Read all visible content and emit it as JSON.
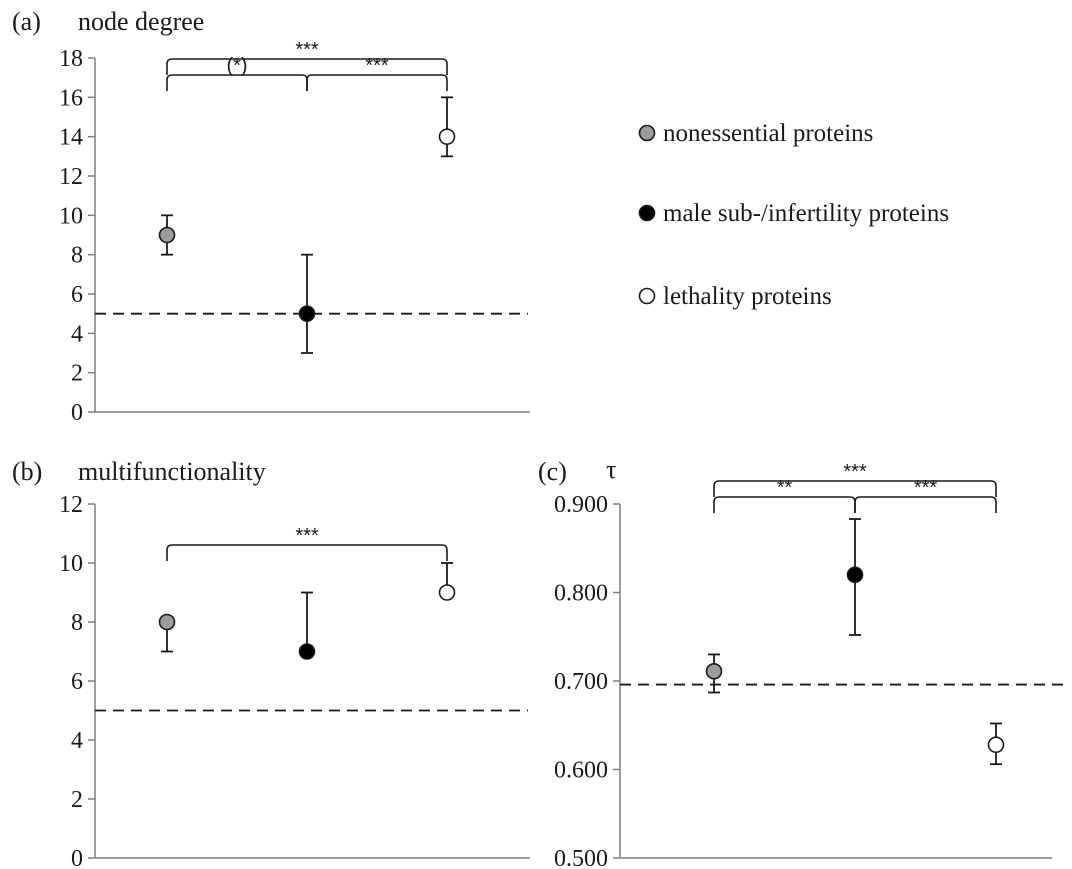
{
  "chart_data": [
    {
      "panel": "(a)",
      "title": "node degree",
      "type": "scatter",
      "ylim": [
        0,
        18
      ],
      "yticks": [
        "0",
        "2",
        "4",
        "6",
        "8",
        "10",
        "12",
        "14",
        "16",
        "18"
      ],
      "reference_line": 5,
      "points": [
        {
          "series": "nonessential proteins",
          "y": 9,
          "low": 8,
          "high": 10
        },
        {
          "series": "male sub-/infertility proteins",
          "y": 5,
          "low": 3,
          "high": 8
        },
        {
          "series": "lethality proteins",
          "y": 14,
          "low": 13,
          "high": 16
        }
      ],
      "significance": [
        {
          "from": 0,
          "to": 1,
          "label": "(*)",
          "level": 1
        },
        {
          "from": 1,
          "to": 2,
          "label": "***",
          "level": 1
        },
        {
          "from": 0,
          "to": 2,
          "label": "***",
          "level": 2
        }
      ]
    },
    {
      "panel": "(b)",
      "title": "multifunctionality",
      "type": "scatter",
      "ylim": [
        0,
        12
      ],
      "yticks": [
        "0",
        "2",
        "4",
        "6",
        "8",
        "10",
        "12"
      ],
      "reference_line": 5,
      "points": [
        {
          "series": "nonessential proteins",
          "y": 8,
          "low": 7,
          "high": 8
        },
        {
          "series": "male sub-/infertility proteins",
          "y": 7,
          "low": 7,
          "high": 9
        },
        {
          "series": "lethality proteins",
          "y": 9,
          "low": 9,
          "high": 10
        }
      ],
      "significance": [
        {
          "from": 0,
          "to": 2,
          "label": "***",
          "level": 1
        }
      ]
    },
    {
      "panel": "(c)",
      "title": "τ",
      "type": "scatter",
      "ylim": [
        0.5,
        0.9
      ],
      "yticks": [
        "0.500",
        "0.600",
        "0.700",
        "0.800",
        "0.900"
      ],
      "reference_line": 0.696,
      "points": [
        {
          "series": "nonessential proteins",
          "y": 0.711,
          "low": 0.687,
          "high": 0.73
        },
        {
          "series": "male sub-/infertility proteins",
          "y": 0.82,
          "low": 0.752,
          "high": 0.883
        },
        {
          "series": "lethality proteins",
          "y": 0.628,
          "low": 0.606,
          "high": 0.652
        }
      ],
      "significance": [
        {
          "from": 0,
          "to": 1,
          "label": "**",
          "level": 1
        },
        {
          "from": 1,
          "to": 2,
          "label": "***",
          "level": 1
        },
        {
          "from": 0,
          "to": 2,
          "label": "***",
          "level": 2
        }
      ]
    }
  ],
  "legend": [
    {
      "label": "nonessential proteins",
      "fill": "#9b9b9b"
    },
    {
      "label": "male sub-/infertility proteins",
      "fill": "#000000"
    },
    {
      "label": "lethality proteins",
      "fill": "#ffffff"
    }
  ]
}
